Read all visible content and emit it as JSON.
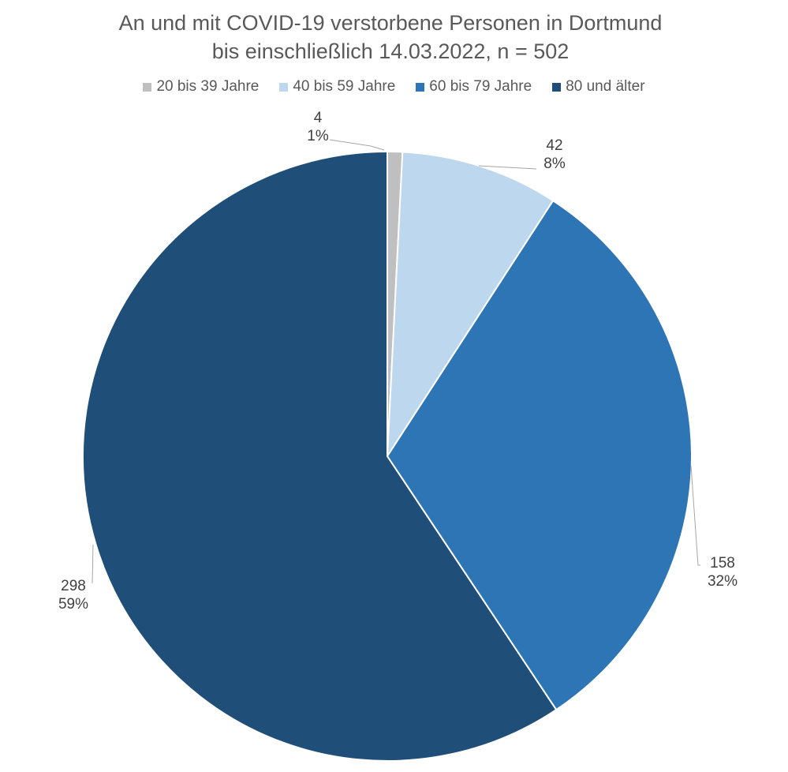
{
  "chart_data": {
    "type": "pie",
    "title_lines": [
      "An und mit COVID-19 verstorbene Personen in Dortmund",
      "bis einschließlich 14.03.2022, n = 502"
    ],
    "legend_position": "top",
    "slices": [
      {
        "label": "20 bis 39 Jahre",
        "value": 4,
        "percent_label": "1%",
        "color": "#bfbfbf"
      },
      {
        "label": "40 bis 59 Jahre",
        "value": 42,
        "percent_label": "8%",
        "color": "#bdd7ee"
      },
      {
        "label": "60 bis 79 Jahre",
        "value": 158,
        "percent_label": "32%",
        "color": "#2e75b6"
      },
      {
        "label": "80 und älter",
        "value": 298,
        "percent_label": "59%",
        "color": "#1f4e79"
      }
    ],
    "total": 502
  }
}
